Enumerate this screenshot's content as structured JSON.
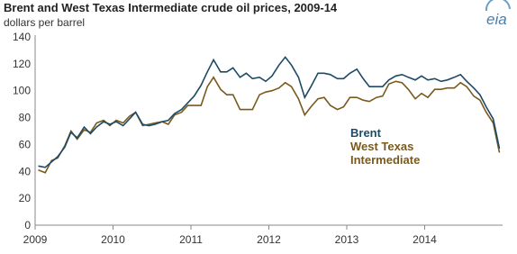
{
  "logo": "eia",
  "chart_data": {
    "type": "line",
    "title": "Brent and West Texas Intermediate crude oil prices, 2009-14",
    "subtitle": "dollars per barrel",
    "x": [
      2009.04,
      2009.13,
      2009.21,
      2009.29,
      2009.38,
      2009.46,
      2009.54,
      2009.63,
      2009.71,
      2009.79,
      2009.88,
      2009.96,
      2010.04,
      2010.13,
      2010.21,
      2010.29,
      2010.38,
      2010.46,
      2010.54,
      2010.63,
      2010.71,
      2010.79,
      2010.88,
      2010.96,
      2011.04,
      2011.13,
      2011.21,
      2011.29,
      2011.38,
      2011.46,
      2011.54,
      2011.63,
      2011.71,
      2011.79,
      2011.88,
      2011.96,
      2012.04,
      2012.13,
      2012.21,
      2012.29,
      2012.38,
      2012.46,
      2012.54,
      2012.63,
      2012.71,
      2012.79,
      2012.88,
      2012.96,
      2013.04,
      2013.13,
      2013.21,
      2013.29,
      2013.38,
      2013.46,
      2013.54,
      2013.63,
      2013.71,
      2013.79,
      2013.88,
      2013.96,
      2014.04,
      2014.13,
      2014.21,
      2014.29,
      2014.38,
      2014.46,
      2014.54,
      2014.63,
      2014.71,
      2014.79,
      2014.88,
      2014.96
    ],
    "series": [
      {
        "name": "Brent",
        "color": "#1d4a66",
        "values": [
          44,
          43,
          47,
          51,
          58,
          69,
          65,
          73,
          68,
          73,
          77,
          75,
          77,
          74,
          79,
          84,
          75,
          74,
          75,
          77,
          78,
          83,
          86,
          91,
          96,
          104,
          114,
          123,
          114,
          114,
          117,
          110,
          113,
          109,
          110,
          107,
          111,
          119,
          125,
          119,
          110,
          95,
          103,
          113,
          113,
          112,
          109,
          109,
          113,
          116,
          109,
          103,
          103,
          103,
          108,
          111,
          112,
          110,
          108,
          111,
          108,
          109,
          107,
          108,
          110,
          112,
          107,
          102,
          97,
          88,
          79,
          57
        ]
      },
      {
        "name": "West Texas Intermediate",
        "color": "#7a5a1c",
        "values": [
          41,
          39,
          48,
          50,
          59,
          70,
          64,
          71,
          69,
          76,
          78,
          74,
          78,
          76,
          81,
          84,
          74,
          75,
          76,
          77,
          75,
          82,
          84,
          89,
          89,
          89,
          103,
          110,
          101,
          97,
          97,
          86,
          86,
          86,
          97,
          99,
          100,
          102,
          106,
          103,
          94,
          82,
          88,
          94,
          95,
          89,
          86,
          88,
          95,
          95,
          93,
          92,
          95,
          96,
          105,
          107,
          106,
          101,
          94,
          98,
          95,
          101,
          101,
          102,
          102,
          106,
          103,
          96,
          93,
          84,
          76,
          54
        ]
      }
    ],
    "xlim": [
      2009,
      2015
    ],
    "xticks": [
      2009,
      2010,
      2011,
      2012,
      2013,
      2014
    ],
    "ylim": [
      0,
      140
    ],
    "yticks": [
      0,
      20,
      40,
      60,
      80,
      100,
      120,
      140
    ],
    "grid": false
  }
}
